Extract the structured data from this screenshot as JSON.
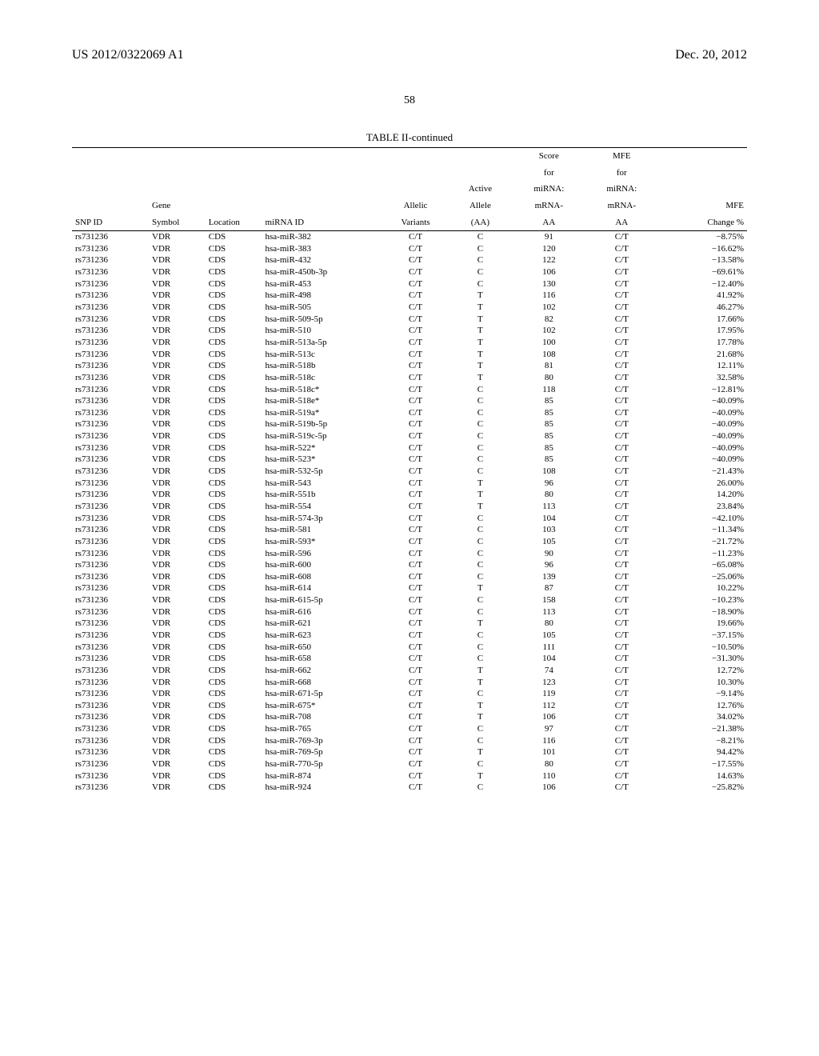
{
  "header": {
    "left": "US 2012/0322069 A1",
    "right": "Dec. 20, 2012"
  },
  "page_number": "58",
  "table": {
    "title": "TABLE II-continued",
    "columns": {
      "snp_id": "SNP ID",
      "gene_symbol_l1": "Gene",
      "gene_symbol_l2": "Symbol",
      "location": "Location",
      "mirna_id": "miRNA ID",
      "allelic_l1": "Allelic",
      "allelic_l2": "Variants",
      "active_l1": "Active",
      "active_l2": "Allele",
      "active_l3": "(AA)",
      "score_l1": "Score",
      "score_l2": "for",
      "score_l3": "miRNA:",
      "score_l4": "mRNA-",
      "score_l5": "AA",
      "mfe_l1": "MFE",
      "mfe_l2": "for",
      "mfe_l3": "miRNA:",
      "mfe_l4": "mRNA-",
      "mfe_l5": "AA",
      "change_l1": "MFE",
      "change_l2": "Change %"
    },
    "rows": [
      {
        "snp": "rs731236",
        "gene": "VDR",
        "loc": "CDS",
        "mirna": "hsa-miR-382",
        "av": "C/T",
        "aa": "C",
        "score": "91",
        "mfe": "C/T",
        "chg": "−8.75%"
      },
      {
        "snp": "rs731236",
        "gene": "VDR",
        "loc": "CDS",
        "mirna": "hsa-miR-383",
        "av": "C/T",
        "aa": "C",
        "score": "120",
        "mfe": "C/T",
        "chg": "−16.62%"
      },
      {
        "snp": "rs731236",
        "gene": "VDR",
        "loc": "CDS",
        "mirna": "hsa-miR-432",
        "av": "C/T",
        "aa": "C",
        "score": "122",
        "mfe": "C/T",
        "chg": "−13.58%"
      },
      {
        "snp": "rs731236",
        "gene": "VDR",
        "loc": "CDS",
        "mirna": "hsa-miR-450b-3p",
        "av": "C/T",
        "aa": "C",
        "score": "106",
        "mfe": "C/T",
        "chg": "−69.61%"
      },
      {
        "snp": "rs731236",
        "gene": "VDR",
        "loc": "CDS",
        "mirna": "hsa-miR-453",
        "av": "C/T",
        "aa": "C",
        "score": "130",
        "mfe": "C/T",
        "chg": "−12.40%"
      },
      {
        "snp": "rs731236",
        "gene": "VDR",
        "loc": "CDS",
        "mirna": "hsa-miR-498",
        "av": "C/T",
        "aa": "T",
        "score": "116",
        "mfe": "C/T",
        "chg": "41.92%"
      },
      {
        "snp": "rs731236",
        "gene": "VDR",
        "loc": "CDS",
        "mirna": "hsa-miR-505",
        "av": "C/T",
        "aa": "T",
        "score": "102",
        "mfe": "C/T",
        "chg": "46.27%"
      },
      {
        "snp": "rs731236",
        "gene": "VDR",
        "loc": "CDS",
        "mirna": "hsa-miR-509-5p",
        "av": "C/T",
        "aa": "T",
        "score": "82",
        "mfe": "C/T",
        "chg": "17.66%"
      },
      {
        "snp": "rs731236",
        "gene": "VDR",
        "loc": "CDS",
        "mirna": "hsa-miR-510",
        "av": "C/T",
        "aa": "T",
        "score": "102",
        "mfe": "C/T",
        "chg": "17.95%"
      },
      {
        "snp": "rs731236",
        "gene": "VDR",
        "loc": "CDS",
        "mirna": "hsa-miR-513a-5p",
        "av": "C/T",
        "aa": "T",
        "score": "100",
        "mfe": "C/T",
        "chg": "17.78%"
      },
      {
        "snp": "rs731236",
        "gene": "VDR",
        "loc": "CDS",
        "mirna": "hsa-miR-513c",
        "av": "C/T",
        "aa": "T",
        "score": "108",
        "mfe": "C/T",
        "chg": "21.68%"
      },
      {
        "snp": "rs731236",
        "gene": "VDR",
        "loc": "CDS",
        "mirna": "hsa-miR-518b",
        "av": "C/T",
        "aa": "T",
        "score": "81",
        "mfe": "C/T",
        "chg": "12.11%"
      },
      {
        "snp": "rs731236",
        "gene": "VDR",
        "loc": "CDS",
        "mirna": "hsa-miR-518c",
        "av": "C/T",
        "aa": "T",
        "score": "80",
        "mfe": "C/T",
        "chg": "32.58%"
      },
      {
        "snp": "rs731236",
        "gene": "VDR",
        "loc": "CDS",
        "mirna": "hsa-miR-518c*",
        "av": "C/T",
        "aa": "C",
        "score": "118",
        "mfe": "C/T",
        "chg": "−12.81%"
      },
      {
        "snp": "rs731236",
        "gene": "VDR",
        "loc": "CDS",
        "mirna": "hsa-miR-518e*",
        "av": "C/T",
        "aa": "C",
        "score": "85",
        "mfe": "C/T",
        "chg": "−40.09%"
      },
      {
        "snp": "rs731236",
        "gene": "VDR",
        "loc": "CDS",
        "mirna": "hsa-miR-519a*",
        "av": "C/T",
        "aa": "C",
        "score": "85",
        "mfe": "C/T",
        "chg": "−40.09%"
      },
      {
        "snp": "rs731236",
        "gene": "VDR",
        "loc": "CDS",
        "mirna": "hsa-miR-519b-5p",
        "av": "C/T",
        "aa": "C",
        "score": "85",
        "mfe": "C/T",
        "chg": "−40.09%"
      },
      {
        "snp": "rs731236",
        "gene": "VDR",
        "loc": "CDS",
        "mirna": "hsa-miR-519c-5p",
        "av": "C/T",
        "aa": "C",
        "score": "85",
        "mfe": "C/T",
        "chg": "−40.09%"
      },
      {
        "snp": "rs731236",
        "gene": "VDR",
        "loc": "CDS",
        "mirna": "hsa-miR-522*",
        "av": "C/T",
        "aa": "C",
        "score": "85",
        "mfe": "C/T",
        "chg": "−40.09%"
      },
      {
        "snp": "rs731236",
        "gene": "VDR",
        "loc": "CDS",
        "mirna": "hsa-miR-523*",
        "av": "C/T",
        "aa": "C",
        "score": "85",
        "mfe": "C/T",
        "chg": "−40.09%"
      },
      {
        "snp": "rs731236",
        "gene": "VDR",
        "loc": "CDS",
        "mirna": "hsa-miR-532-5p",
        "av": "C/T",
        "aa": "C",
        "score": "108",
        "mfe": "C/T",
        "chg": "−21.43%"
      },
      {
        "snp": "rs731236",
        "gene": "VDR",
        "loc": "CDS",
        "mirna": "hsa-miR-543",
        "av": "C/T",
        "aa": "T",
        "score": "96",
        "mfe": "C/T",
        "chg": "26.00%"
      },
      {
        "snp": "rs731236",
        "gene": "VDR",
        "loc": "CDS",
        "mirna": "hsa-miR-551b",
        "av": "C/T",
        "aa": "T",
        "score": "80",
        "mfe": "C/T",
        "chg": "14.20%"
      },
      {
        "snp": "rs731236",
        "gene": "VDR",
        "loc": "CDS",
        "mirna": "hsa-miR-554",
        "av": "C/T",
        "aa": "T",
        "score": "113",
        "mfe": "C/T",
        "chg": "23.84%"
      },
      {
        "snp": "rs731236",
        "gene": "VDR",
        "loc": "CDS",
        "mirna": "hsa-miR-574-3p",
        "av": "C/T",
        "aa": "C",
        "score": "104",
        "mfe": "C/T",
        "chg": "−42.10%"
      },
      {
        "snp": "rs731236",
        "gene": "VDR",
        "loc": "CDS",
        "mirna": "hsa-miR-581",
        "av": "C/T",
        "aa": "C",
        "score": "103",
        "mfe": "C/T",
        "chg": "−11.34%"
      },
      {
        "snp": "rs731236",
        "gene": "VDR",
        "loc": "CDS",
        "mirna": "hsa-miR-593*",
        "av": "C/T",
        "aa": "C",
        "score": "105",
        "mfe": "C/T",
        "chg": "−21.72%"
      },
      {
        "snp": "rs731236",
        "gene": "VDR",
        "loc": "CDS",
        "mirna": "hsa-miR-596",
        "av": "C/T",
        "aa": "C",
        "score": "90",
        "mfe": "C/T",
        "chg": "−11.23%"
      },
      {
        "snp": "rs731236",
        "gene": "VDR",
        "loc": "CDS",
        "mirna": "hsa-miR-600",
        "av": "C/T",
        "aa": "C",
        "score": "96",
        "mfe": "C/T",
        "chg": "−65.08%"
      },
      {
        "snp": "rs731236",
        "gene": "VDR",
        "loc": "CDS",
        "mirna": "hsa-miR-608",
        "av": "C/T",
        "aa": "C",
        "score": "139",
        "mfe": "C/T",
        "chg": "−25.06%"
      },
      {
        "snp": "rs731236",
        "gene": "VDR",
        "loc": "CDS",
        "mirna": "hsa-miR-614",
        "av": "C/T",
        "aa": "T",
        "score": "87",
        "mfe": "C/T",
        "chg": "10.22%"
      },
      {
        "snp": "rs731236",
        "gene": "VDR",
        "loc": "CDS",
        "mirna": "hsa-miR-615-5p",
        "av": "C/T",
        "aa": "C",
        "score": "158",
        "mfe": "C/T",
        "chg": "−10.23%"
      },
      {
        "snp": "rs731236",
        "gene": "VDR",
        "loc": "CDS",
        "mirna": "hsa-miR-616",
        "av": "C/T",
        "aa": "C",
        "score": "113",
        "mfe": "C/T",
        "chg": "−18.90%"
      },
      {
        "snp": "rs731236",
        "gene": "VDR",
        "loc": "CDS",
        "mirna": "hsa-miR-621",
        "av": "C/T",
        "aa": "T",
        "score": "80",
        "mfe": "C/T",
        "chg": "19.66%"
      },
      {
        "snp": "rs731236",
        "gene": "VDR",
        "loc": "CDS",
        "mirna": "hsa-miR-623",
        "av": "C/T",
        "aa": "C",
        "score": "105",
        "mfe": "C/T",
        "chg": "−37.15%"
      },
      {
        "snp": "rs731236",
        "gene": "VDR",
        "loc": "CDS",
        "mirna": "hsa-miR-650",
        "av": "C/T",
        "aa": "C",
        "score": "111",
        "mfe": "C/T",
        "chg": "−10.50%"
      },
      {
        "snp": "rs731236",
        "gene": "VDR",
        "loc": "CDS",
        "mirna": "hsa-miR-658",
        "av": "C/T",
        "aa": "C",
        "score": "104",
        "mfe": "C/T",
        "chg": "−31.30%"
      },
      {
        "snp": "rs731236",
        "gene": "VDR",
        "loc": "CDS",
        "mirna": "hsa-miR-662",
        "av": "C/T",
        "aa": "T",
        "score": "74",
        "mfe": "C/T",
        "chg": "12.72%"
      },
      {
        "snp": "rs731236",
        "gene": "VDR",
        "loc": "CDS",
        "mirna": "hsa-miR-668",
        "av": "C/T",
        "aa": "T",
        "score": "123",
        "mfe": "C/T",
        "chg": "10.30%"
      },
      {
        "snp": "rs731236",
        "gene": "VDR",
        "loc": "CDS",
        "mirna": "hsa-miR-671-5p",
        "av": "C/T",
        "aa": "C",
        "score": "119",
        "mfe": "C/T",
        "chg": "−9.14%"
      },
      {
        "snp": "rs731236",
        "gene": "VDR",
        "loc": "CDS",
        "mirna": "hsa-miR-675*",
        "av": "C/T",
        "aa": "T",
        "score": "112",
        "mfe": "C/T",
        "chg": "12.76%"
      },
      {
        "snp": "rs731236",
        "gene": "VDR",
        "loc": "CDS",
        "mirna": "hsa-miR-708",
        "av": "C/T",
        "aa": "T",
        "score": "106",
        "mfe": "C/T",
        "chg": "34.02%"
      },
      {
        "snp": "rs731236",
        "gene": "VDR",
        "loc": "CDS",
        "mirna": "hsa-miR-765",
        "av": "C/T",
        "aa": "C",
        "score": "97",
        "mfe": "C/T",
        "chg": "−21.38%"
      },
      {
        "snp": "rs731236",
        "gene": "VDR",
        "loc": "CDS",
        "mirna": "hsa-miR-769-3p",
        "av": "C/T",
        "aa": "C",
        "score": "116",
        "mfe": "C/T",
        "chg": "−8.21%"
      },
      {
        "snp": "rs731236",
        "gene": "VDR",
        "loc": "CDS",
        "mirna": "hsa-miR-769-5p",
        "av": "C/T",
        "aa": "T",
        "score": "101",
        "mfe": "C/T",
        "chg": "94.42%"
      },
      {
        "snp": "rs731236",
        "gene": "VDR",
        "loc": "CDS",
        "mirna": "hsa-miR-770-5p",
        "av": "C/T",
        "aa": "C",
        "score": "80",
        "mfe": "C/T",
        "chg": "−17.55%"
      },
      {
        "snp": "rs731236",
        "gene": "VDR",
        "loc": "CDS",
        "mirna": "hsa-miR-874",
        "av": "C/T",
        "aa": "T",
        "score": "110",
        "mfe": "C/T",
        "chg": "14.63%"
      },
      {
        "snp": "rs731236",
        "gene": "VDR",
        "loc": "CDS",
        "mirna": "hsa-miR-924",
        "av": "C/T",
        "aa": "C",
        "score": "106",
        "mfe": "C/T",
        "chg": "−25.82%"
      }
    ]
  }
}
